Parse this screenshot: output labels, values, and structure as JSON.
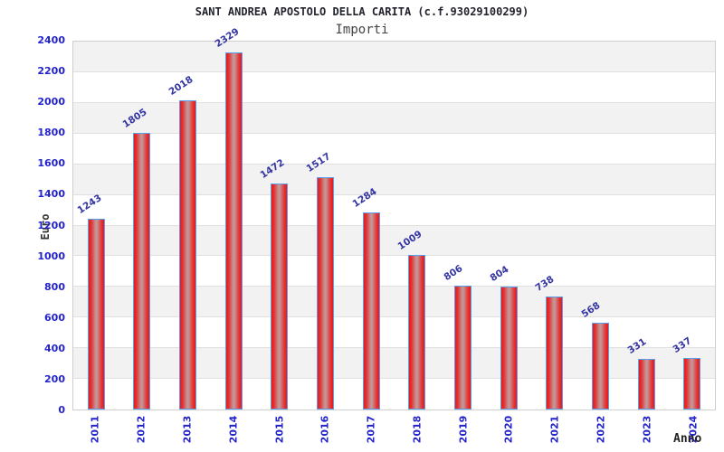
{
  "chart_data": {
    "type": "bar",
    "title": "SANT ANDREA APOSTOLO DELLA CARITA (c.f.93029100299)",
    "subtitle": "Importi",
    "xlabel": "Anno",
    "ylabel": "Euro",
    "categories": [
      "2011",
      "2012",
      "2013",
      "2014",
      "2015",
      "2016",
      "2017",
      "2018",
      "2019",
      "2020",
      "2021",
      "2022",
      "2023",
      "2024"
    ],
    "values": [
      1243,
      1805,
      2018,
      2329,
      1472,
      1517,
      1284,
      1009,
      806,
      804,
      738,
      568,
      331,
      337
    ],
    "ylim": [
      0,
      2400
    ],
    "ytick_step": 200,
    "grid": "horizontal-bands-alternating",
    "legend": "none",
    "colors": {
      "bar_edge": "#f01616",
      "bar_center": "#c59595",
      "bar_border": "#58a0ef",
      "value_label": "#3434a4",
      "axis_tick_label": "#2323cc",
      "band_gray": "#f2f2f3",
      "band_white": "#ffffff",
      "gridline": "#e0e0e0",
      "title_color": "#23232e",
      "subtitle_color": "#444444"
    }
  }
}
